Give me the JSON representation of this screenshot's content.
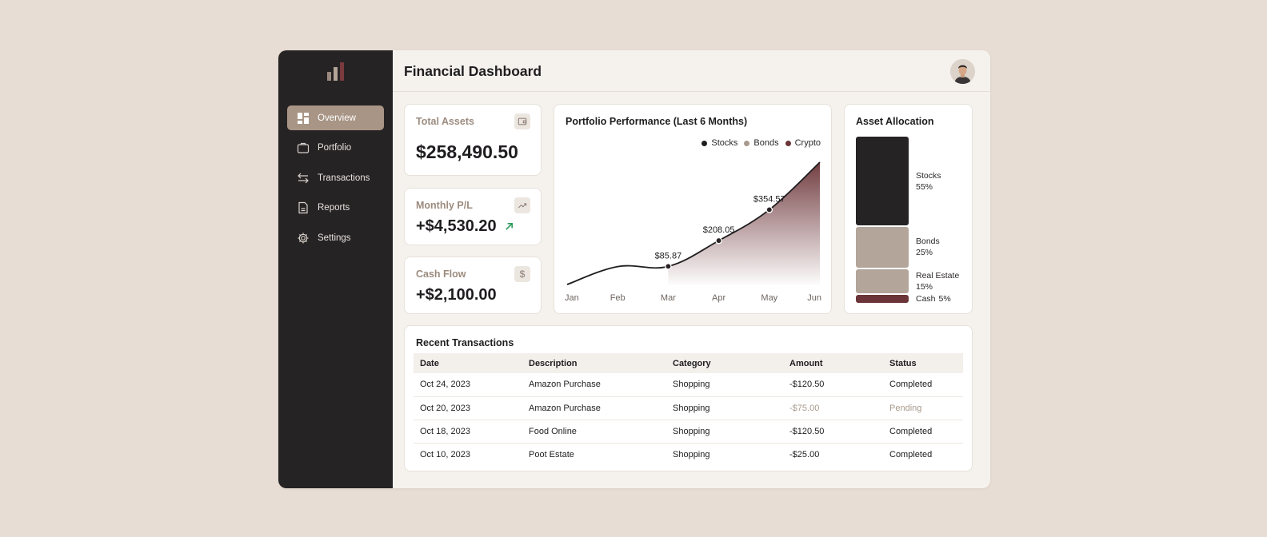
{
  "header": {
    "title": "Financial Dashboard"
  },
  "sidebar": {
    "items": [
      {
        "label": "Overview",
        "icon": "grid-icon",
        "active": true
      },
      {
        "label": "Portfolio",
        "icon": "briefcase-icon"
      },
      {
        "label": "Transactions",
        "icon": "arrows-exchange-icon"
      },
      {
        "label": "Reports",
        "icon": "document-icon"
      },
      {
        "label": "Settings",
        "icon": "gear-icon"
      }
    ]
  },
  "stats": {
    "total_assets": {
      "label": "Total Assets",
      "value": "$258,490.50",
      "icon": "wallet-icon"
    },
    "monthly_pl": {
      "label": "Monthly P/L",
      "value": "+$4,530.20",
      "icon": "trending-up-icon",
      "trend_color": "#2e9b5d"
    },
    "cash_flow": {
      "label": "Cash Flow",
      "value": "+$2,100.00",
      "icon": "dollar-icon",
      "icon_glyph": "$"
    }
  },
  "performance": {
    "title": "Portfolio Performance (Last 6 Months)",
    "legend": [
      {
        "name": "Stocks",
        "color": "#1f1d1f"
      },
      {
        "name": "Bonds",
        "color": "#a89a8e"
      },
      {
        "name": "Crypto",
        "color": "#6b3438"
      }
    ]
  },
  "chart_data": {
    "type": "area",
    "title": "Portfolio Performance (Last 6 Months)",
    "categories": [
      "Jan",
      "Feb",
      "Mar",
      "Apr",
      "May",
      "Jun"
    ],
    "values": [
      0,
      85,
      85.87,
      208.05,
      354.57,
      580
    ],
    "data_labels": [
      {
        "index": 2,
        "label": "$85.87"
      },
      {
        "index": 3,
        "label": "$208.05"
      },
      {
        "index": 4,
        "label": "$354.57"
      }
    ],
    "ylim": [
      0,
      580
    ],
    "grid": false,
    "legend_position": "top-right",
    "line_color": "#1f1d1f",
    "fill_color": "#6b3438"
  },
  "allocation": {
    "title": "Asset Allocation",
    "segments": [
      {
        "name": "Stocks",
        "percent": 55,
        "pct_label": "55%",
        "color": "#262325"
      },
      {
        "name": "Bonds",
        "percent": 25,
        "pct_label": "25%",
        "color": "#b3a599"
      },
      {
        "name": "Real Estate",
        "percent": 15,
        "pct_label": "15%",
        "color": "#b3a599"
      },
      {
        "name": "Cash",
        "percent": 5,
        "pct_label": "5%",
        "color": "#6b3438"
      }
    ]
  },
  "transactions": {
    "title": "Recent Transactions",
    "columns": [
      "Date",
      "Description",
      "Category",
      "Amount",
      "Status"
    ],
    "rows": [
      {
        "date": "Oct 24, 2023",
        "description": "Amazon Purchase",
        "category": "Shopping",
        "amount": "-$120.50",
        "status": "Completed"
      },
      {
        "date": "Oct 20, 2023",
        "description": "Amazon Purchase",
        "category": "Shopping",
        "amount": "-$75.00",
        "status": "Pending"
      },
      {
        "date": "Oct 18, 2023",
        "description": "Food Online",
        "category": "Shopping",
        "amount": "-$120.50",
        "status": "Completed"
      },
      {
        "date": "Oct 10, 2023",
        "description": "Poot Estate",
        "category": "Shopping",
        "amount": "-$25.00",
        "status": "Completed"
      }
    ]
  }
}
